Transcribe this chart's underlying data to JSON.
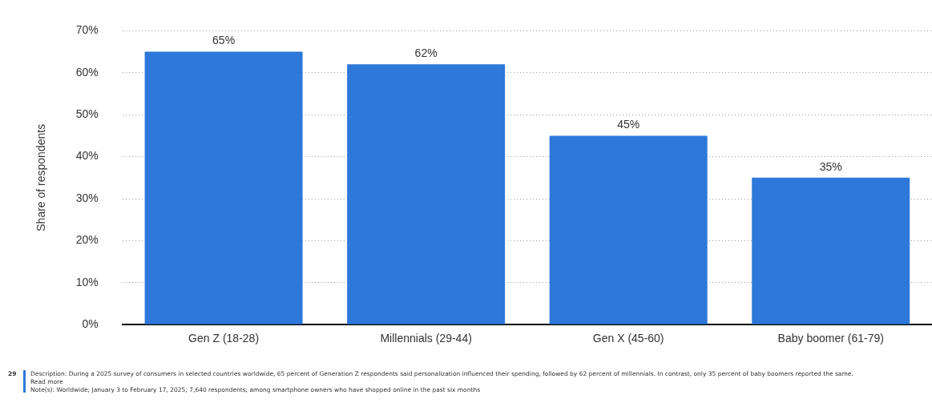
{
  "chart_data": {
    "type": "bar",
    "ylabel": "Share of respondents",
    "categories": [
      "Gen Z (18-28)",
      "Millennials (29-44)",
      "Gen X (45-60)",
      "Baby boomer (61-79)"
    ],
    "values": [
      65,
      62,
      45,
      35
    ],
    "color": "#2d78d8",
    "value_labels": [
      "65%",
      "62%",
      "45%",
      "35%"
    ],
    "ylim": [
      0,
      70
    ],
    "yticks": [
      {
        "value": 0,
        "label": "0%"
      },
      {
        "value": 10,
        "label": "10%"
      },
      {
        "value": 20,
        "label": "20%"
      },
      {
        "value": 30,
        "label": "30%"
      },
      {
        "value": 40,
        "label": "40%"
      },
      {
        "value": 50,
        "label": "50%"
      },
      {
        "value": 60,
        "label": "60%"
      },
      {
        "value": 70,
        "label": "70%"
      }
    ],
    "grid": "y",
    "legend": false,
    "annotations": [
      "29",
      "Description: During a 2025 survey of consumers in selected countries worldwide, 65 percent of Generation Z respondents said personalization influenced their spending, followed by 62 percent of millennials. In contrast, only 35 percent of baby boomers reported the same. Read more",
      "Note(s): Worldwide; January 3 to February 17, 2025; 7,640 respondents; among smartphone owners who have shopped online in the past six months"
    ]
  }
}
